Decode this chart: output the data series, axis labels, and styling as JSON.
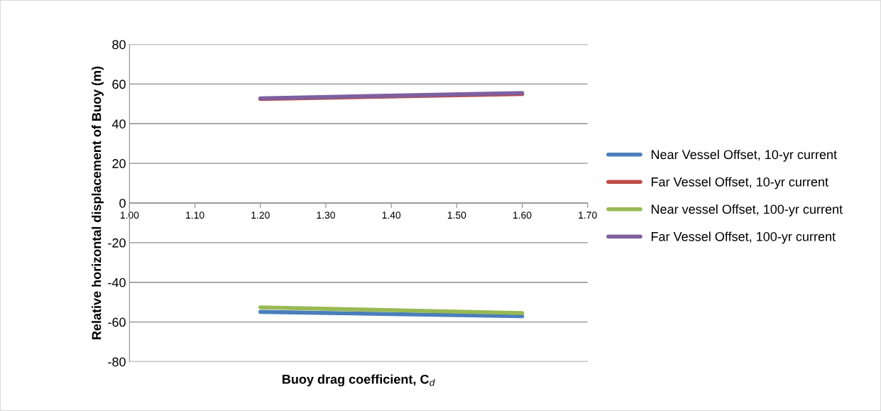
{
  "chart_data": {
    "type": "line",
    "xlabel": "Buoy drag coefficient, C$_{d}$",
    "ylabel": "Relative horizontal displacement of Buoy (m)",
    "x": [
      1.2,
      1.6
    ],
    "series": [
      {
        "name": "Near Vessel Offset, 10-yr current",
        "color": "#4a7ebb",
        "values": [
          -54.9,
          -57.1
        ]
      },
      {
        "name": "Far Vessel Offset, 10-yr current",
        "color": "#be4b48",
        "values": [
          52.5,
          55.0
        ]
      },
      {
        "name": "Near vessel Offset, 100-yr current",
        "color": "#98b954",
        "values": [
          -52.6,
          -55.5
        ]
      },
      {
        "name": "Far Vessel Offset, 100-yr current",
        "color": "#7d60a0",
        "values": [
          52.8,
          55.5
        ]
      }
    ],
    "xlim": [
      1.0,
      1.7
    ],
    "xticks": [
      {
        "value": 1.0,
        "label": "1.00"
      },
      {
        "value": 1.1,
        "label": "1.10"
      },
      {
        "value": 1.2,
        "label": "1.20"
      },
      {
        "value": 1.3,
        "label": "1.30"
      },
      {
        "value": 1.4,
        "label": "1.40"
      },
      {
        "value": 1.5,
        "label": "1.50"
      },
      {
        "value": 1.6,
        "label": "1.60"
      },
      {
        "value": 1.7,
        "label": "1.70"
      }
    ],
    "ylim": [
      -80,
      80
    ],
    "yticks": [
      -80,
      -60,
      -40,
      -20,
      0,
      20,
      40,
      60,
      80
    ],
    "grid": "y",
    "legend": "right",
    "marker": "none",
    "line_style": "solid"
  }
}
